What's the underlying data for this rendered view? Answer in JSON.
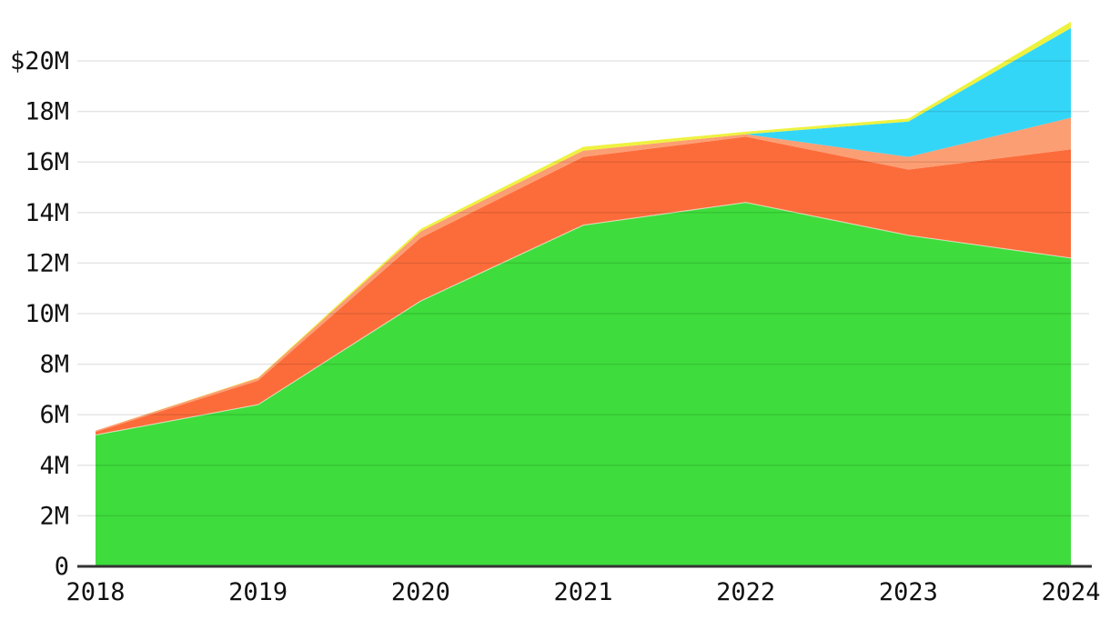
{
  "chart_data": {
    "type": "area",
    "stacked": true,
    "title": "",
    "xlabel": "",
    "ylabel": "",
    "unit": "$M",
    "grid": "horizontal",
    "legend": "none",
    "x": [
      2018,
      2019,
      2020,
      2021,
      2022,
      2023,
      2024
    ],
    "x_labels": [
      "2018",
      "2019",
      "2020",
      "2021",
      "2022",
      "2023",
      "2024"
    ],
    "series": [
      {
        "name": "green",
        "color": "#3edc3c",
        "values": [
          5.2,
          6.4,
          10.5,
          13.5,
          14.4,
          13.1,
          12.2
        ]
      },
      {
        "name": "orange",
        "color": "#fc6c3a",
        "values": [
          0.12,
          0.95,
          2.5,
          2.7,
          2.6,
          2.6,
          4.3
        ]
      },
      {
        "name": "salmon",
        "color": "#fc9e73",
        "values": [
          0.05,
          0.1,
          0.25,
          0.25,
          0.1,
          0.5,
          1.25
        ]
      },
      {
        "name": "cyan",
        "color": "#34d6f8",
        "values": [
          0,
          0,
          0,
          0,
          0,
          1.4,
          3.55
        ]
      },
      {
        "name": "yellow",
        "color": "#eef23f",
        "values": [
          0,
          0.02,
          0.1,
          0.15,
          0.1,
          0.12,
          0.25
        ]
      }
    ],
    "stack_totals": [
      5.37,
      7.47,
      13.35,
      16.6,
      17.2,
      17.72,
      21.55
    ],
    "y_ticks": [
      {
        "label": "$20M",
        "value": 20
      },
      {
        "label": "18M",
        "value": 18
      },
      {
        "label": "16M",
        "value": 16
      },
      {
        "label": "14M",
        "value": 14
      },
      {
        "label": "12M",
        "value": 12
      },
      {
        "label": "10M",
        "value": 10
      },
      {
        "label": "8M",
        "value": 8
      },
      {
        "label": "6M",
        "value": 6
      },
      {
        "label": "4M",
        "value": 4
      },
      {
        "label": "2M",
        "value": 2
      },
      {
        "label": "0",
        "value": 0
      }
    ],
    "ylim": [
      0,
      21.9
    ],
    "colors": {
      "axis": "#333333",
      "gridline": "rgba(0,0,0,0.10)",
      "label": "#111111"
    }
  }
}
